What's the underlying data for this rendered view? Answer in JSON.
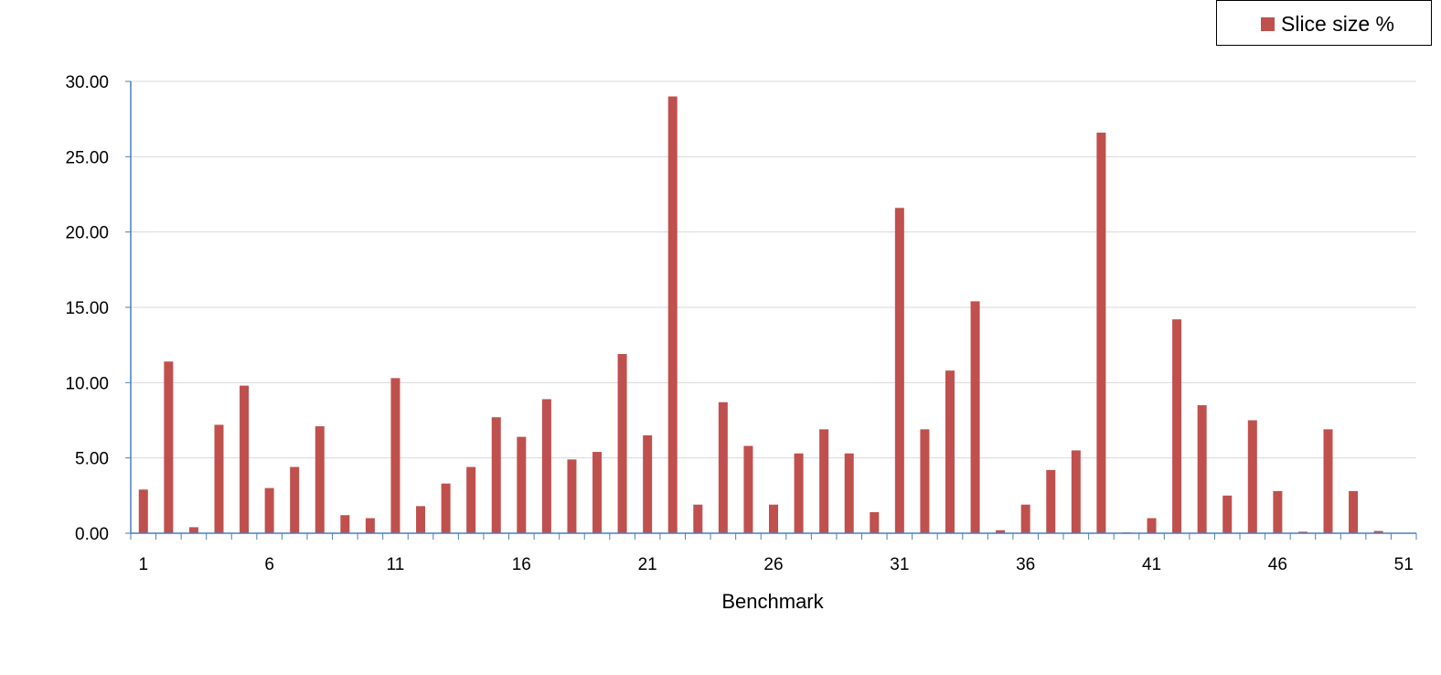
{
  "chart_data": {
    "type": "bar",
    "title": "",
    "xlabel": "Benchmark",
    "ylabel": "",
    "ylim": [
      0,
      30
    ],
    "y_ticks": [
      "0.00",
      "5.00",
      "10.00",
      "15.00",
      "20.00",
      "25.00",
      "30.00"
    ],
    "x_tick_labels": [
      "1",
      "6",
      "11",
      "16",
      "21",
      "26",
      "31",
      "36",
      "41",
      "46",
      "51"
    ],
    "grid": "horizontal",
    "legend_position": "top-right",
    "categories": [
      "1",
      "2",
      "3",
      "4",
      "5",
      "6",
      "7",
      "8",
      "9",
      "10",
      "11",
      "12",
      "13",
      "14",
      "15",
      "16",
      "17",
      "18",
      "19",
      "20",
      "21",
      "22",
      "23",
      "24",
      "25",
      "26",
      "27",
      "28",
      "29",
      "30",
      "31",
      "32",
      "33",
      "34",
      "35",
      "36",
      "37",
      "38",
      "39",
      "40",
      "41",
      "42",
      "43",
      "44",
      "45",
      "46",
      "47",
      "48",
      "49",
      "50",
      "51"
    ],
    "series": [
      {
        "name": "Slice size %",
        "color": "#c0504d",
        "values": [
          2.9,
          11.4,
          0.4,
          7.2,
          9.8,
          3.0,
          4.4,
          7.1,
          1.2,
          1.0,
          10.3,
          1.8,
          3.3,
          4.4,
          7.7,
          6.4,
          8.9,
          4.9,
          5.4,
          11.9,
          6.5,
          29.0,
          1.9,
          8.7,
          5.8,
          1.9,
          5.3,
          6.9,
          5.3,
          1.4,
          21.6,
          6.9,
          10.8,
          15.4,
          0.2,
          1.9,
          4.2,
          5.5,
          26.6,
          0.05,
          1.0,
          14.2,
          8.5,
          2.5,
          7.5,
          2.8,
          0.1,
          6.9,
          2.8,
          0.15,
          0
        ]
      }
    ]
  },
  "colors": {
    "bar": "#c0504d",
    "axis": "#4a7ebb",
    "grid": "#d9d9d9"
  }
}
